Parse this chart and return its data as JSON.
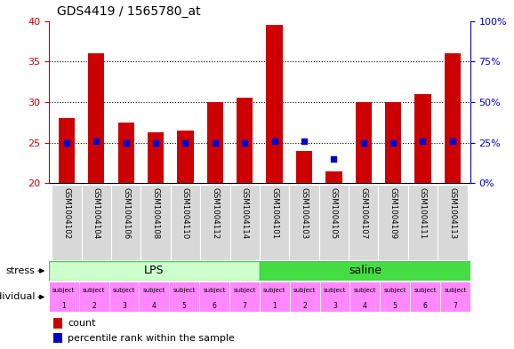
{
  "title": "GDS4419 / 1565780_at",
  "samples": [
    "GSM1004102",
    "GSM1004104",
    "GSM1004106",
    "GSM1004108",
    "GSM1004110",
    "GSM1004112",
    "GSM1004114",
    "GSM1004101",
    "GSM1004103",
    "GSM1004105",
    "GSM1004107",
    "GSM1004109",
    "GSM1004111",
    "GSM1004113"
  ],
  "counts": [
    28,
    36,
    27.5,
    26.3,
    26.5,
    30,
    30.5,
    39.5,
    24,
    21.5,
    30,
    30,
    31,
    36
  ],
  "percentiles": [
    25,
    26,
    25,
    25,
    25,
    25,
    25,
    26,
    26,
    15,
    25,
    25,
    26,
    26
  ],
  "ylim_left": [
    20,
    40
  ],
  "ylim_right": [
    0,
    100
  ],
  "yticks_left": [
    20,
    25,
    30,
    35,
    40
  ],
  "yticks_right": [
    0,
    25,
    50,
    75,
    100
  ],
  "bar_color": "#cc0000",
  "dot_color": "#0000cc",
  "lps_color": "#ccffcc",
  "lps_border": "#44cc44",
  "saline_color": "#44dd44",
  "saline_border": "#44cc44",
  "cell_bg": "#d8d8d8",
  "subject_color": "#ff88ff",
  "lps_label": "LPS",
  "saline_label": "saline",
  "stress_label": "stress",
  "individual_label": "individual",
  "subject_numbers": [
    "1",
    "2",
    "3",
    "4",
    "5",
    "6",
    "7",
    "1",
    "2",
    "3",
    "4",
    "5",
    "6",
    "7"
  ],
  "legend_count": "count",
  "legend_percentile": "percentile rank within the sample",
  "left_axis_color": "#cc0000",
  "right_axis_color": "#0000cc",
  "n_lps": 7,
  "n_saline": 7
}
